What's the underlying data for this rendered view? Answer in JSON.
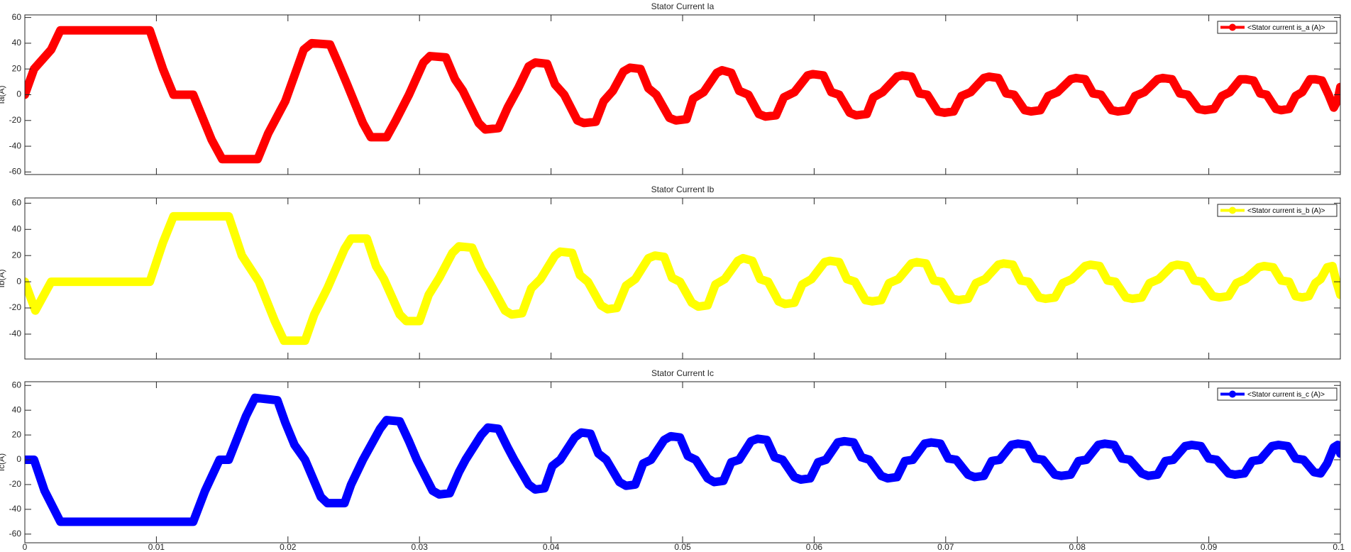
{
  "chart_data": [
    {
      "type": "line",
      "title": "Stator Current Ia",
      "ylabel": "Ia(A)",
      "legend": "northeast",
      "xlim": [
        0,
        0.1
      ],
      "xticks": [
        0,
        0.01,
        0.02,
        0.03,
        0.04,
        0.05,
        0.06,
        0.07,
        0.08,
        0.09,
        0.1
      ],
      "ylim": [
        -62,
        62
      ],
      "yticks": [
        -60,
        -40,
        -20,
        0,
        20,
        40,
        60
      ],
      "x": [
        0,
        0.0007,
        0.002,
        0.0027,
        0.0095,
        0.0105,
        0.0113,
        0.0128,
        0.0142,
        0.015,
        0.0177,
        0.0185,
        0.0198,
        0.0212,
        0.0218,
        0.0232,
        0.0238,
        0.0245,
        0.0257,
        0.0263,
        0.0275,
        0.0282,
        0.0292,
        0.0303,
        0.0308,
        0.032,
        0.0327,
        0.0333,
        0.0345,
        0.035,
        0.036,
        0.0367,
        0.0375,
        0.0383,
        0.0388,
        0.0397,
        0.0403,
        0.041,
        0.042,
        0.0425,
        0.0434,
        0.044,
        0.0447,
        0.0455,
        0.046,
        0.0468,
        0.0474,
        0.048,
        0.049,
        0.0495,
        0.0503,
        0.0508,
        0.0516,
        0.0526,
        0.053,
        0.0537,
        0.0543,
        0.055,
        0.0558,
        0.0563,
        0.0571,
        0.0577,
        0.0585,
        0.0595,
        0.0599,
        0.0607,
        0.0613,
        0.0619,
        0.0627,
        0.0632,
        0.064,
        0.0645,
        0.0652,
        0.0663,
        0.0667,
        0.0674,
        0.068,
        0.0686,
        0.0694,
        0.0699,
        0.0706,
        0.0712,
        0.0719,
        0.0729,
        0.0733,
        0.074,
        0.0746,
        0.0752,
        0.076,
        0.0765,
        0.0772,
        0.0778,
        0.0785,
        0.0795,
        0.0799,
        0.0806,
        0.0812,
        0.0818,
        0.0826,
        0.0831,
        0.0838,
        0.0844,
        0.0851,
        0.0861,
        0.0865,
        0.0872,
        0.0878,
        0.0884,
        0.0892,
        0.0897,
        0.0904,
        0.091,
        0.0916,
        0.0924,
        0.0928,
        0.0934,
        0.0939,
        0.0944,
        0.0951,
        0.0955,
        0.0961,
        0.0966,
        0.0971,
        0.0977,
        0.0981,
        0.0986,
        0.0991,
        0.0995,
        0.0998,
        0.1
      ],
      "series": [
        {
          "name": "<Stator current is_a (A)>",
          "color": "#ff0000",
          "values": [
            0,
            20,
            35,
            50,
            50,
            20,
            0,
            0,
            -35,
            -50,
            -50,
            -30,
            -5,
            35,
            40,
            39,
            25,
            8,
            -22,
            -33,
            -33,
            -20,
            0,
            25,
            30,
            29,
            12,
            3,
            -22,
            -27,
            -26,
            -10,
            5,
            22,
            25,
            24,
            8,
            0,
            -20,
            -22,
            -21,
            -5,
            3,
            18,
            21,
            20,
            5,
            0,
            -18,
            -20,
            -19,
            -3,
            2,
            17,
            19,
            17,
            3,
            0,
            -15,
            -17,
            -16,
            -2,
            2,
            15,
            16,
            15,
            2,
            0,
            -14,
            -16,
            -15,
            -2,
            2,
            14,
            15,
            14,
            1,
            0,
            -13,
            -14,
            -13,
            -1,
            2,
            13,
            14,
            13,
            1,
            0,
            -12,
            -13,
            -12,
            -1,
            2,
            12,
            13,
            12,
            1,
            0,
            -12,
            -13,
            -12,
            -1,
            2,
            12,
            13,
            12,
            1,
            0,
            -11,
            -12,
            -11,
            -1,
            2,
            12,
            12,
            11,
            1,
            0,
            -11,
            -12,
            -11,
            -1,
            2,
            12,
            12,
            11,
            0,
            -10,
            -4,
            6
          ]
        }
      ]
    },
    {
      "type": "line",
      "title": "Stator Current Ib",
      "ylabel": "Ib(A)",
      "legend": "northeast",
      "xlim": [
        0,
        0.1
      ],
      "xticks": [
        0,
        0.01,
        0.02,
        0.03,
        0.04,
        0.05,
        0.06,
        0.07,
        0.08,
        0.09,
        0.1
      ],
      "ylim": [
        -59,
        64
      ],
      "yticks": [
        -40,
        -20,
        0,
        20,
        40,
        60
      ],
      "x": [
        0,
        0.0008,
        0.002,
        0.0095,
        0.0105,
        0.0113,
        0.0155,
        0.0165,
        0.0178,
        0.019,
        0.0197,
        0.0213,
        0.022,
        0.023,
        0.0243,
        0.0248,
        0.026,
        0.0267,
        0.0273,
        0.0285,
        0.029,
        0.03,
        0.0307,
        0.0315,
        0.0325,
        0.033,
        0.034,
        0.0347,
        0.0353,
        0.0365,
        0.037,
        0.0378,
        0.0385,
        0.0392,
        0.0403,
        0.0407,
        0.0416,
        0.0422,
        0.0428,
        0.0438,
        0.0443,
        0.045,
        0.0457,
        0.0464,
        0.0474,
        0.0479,
        0.0486,
        0.0492,
        0.0498,
        0.0507,
        0.0512,
        0.0519,
        0.0525,
        0.0532,
        0.0542,
        0.0546,
        0.0553,
        0.0559,
        0.0565,
        0.0573,
        0.0578,
        0.0585,
        0.0591,
        0.0598,
        0.0608,
        0.0612,
        0.0619,
        0.0625,
        0.0631,
        0.0639,
        0.0644,
        0.0651,
        0.0657,
        0.0664,
        0.0674,
        0.0678,
        0.0685,
        0.0691,
        0.0697,
        0.0705,
        0.071,
        0.0717,
        0.0723,
        0.073,
        0.074,
        0.0744,
        0.0751,
        0.0757,
        0.0763,
        0.0771,
        0.0776,
        0.0783,
        0.0789,
        0.0796,
        0.0806,
        0.081,
        0.0817,
        0.0823,
        0.0829,
        0.0837,
        0.0842,
        0.0849,
        0.0855,
        0.0862,
        0.0872,
        0.0876,
        0.0883,
        0.0889,
        0.0895,
        0.0903,
        0.0908,
        0.0915,
        0.0921,
        0.0928,
        0.0938,
        0.0942,
        0.0949,
        0.0955,
        0.0961,
        0.0966,
        0.0971,
        0.0976,
        0.0981,
        0.0985,
        0.099,
        0.0994,
        0.0997,
        0.1
      ],
      "series": [
        {
          "name": "<Stator current is_b (A)>",
          "color": "#ffff00",
          "values": [
            0,
            -22,
            0,
            0,
            30,
            50,
            50,
            20,
            0,
            -30,
            -45,
            -45,
            -25,
            -5,
            25,
            33,
            33,
            12,
            2,
            -25,
            -30,
            -30,
            -10,
            3,
            22,
            27,
            26,
            10,
            0,
            -22,
            -25,
            -24,
            -5,
            2,
            20,
            23,
            22,
            5,
            0,
            -18,
            -21,
            -20,
            -3,
            2,
            18,
            20,
            19,
            3,
            0,
            -16,
            -19,
            -18,
            -2,
            2,
            16,
            18,
            16,
            2,
            0,
            -15,
            -17,
            -16,
            -2,
            2,
            15,
            16,
            15,
            2,
            0,
            -14,
            -15,
            -14,
            -1,
            2,
            14,
            15,
            14,
            1,
            0,
            -13,
            -14,
            -13,
            -1,
            2,
            13,
            14,
            13,
            1,
            0,
            -12,
            -13,
            -12,
            -1,
            2,
            12,
            13,
            12,
            1,
            0,
            -12,
            -13,
            -12,
            -1,
            2,
            12,
            13,
            12,
            1,
            0,
            -11,
            -12,
            -11,
            -1,
            2,
            11,
            12,
            11,
            1,
            0,
            -11,
            -12,
            -11,
            -1,
            2,
            11,
            12,
            0,
            -10
          ]
        }
      ]
    },
    {
      "type": "line",
      "title": "Stator Current Ic",
      "ylabel": "Ic(A)",
      "legend": "northeast",
      "xlim": [
        0,
        0.1
      ],
      "xticks": [
        0,
        0.01,
        0.02,
        0.03,
        0.04,
        0.05,
        0.06,
        0.07,
        0.08,
        0.09,
        0.1
      ],
      "ylim": [
        -67,
        63
      ],
      "yticks": [
        -60,
        -40,
        -20,
        0,
        20,
        40,
        60
      ],
      "x": [
        0,
        0.0007,
        0.0015,
        0.0027,
        0.0128,
        0.0137,
        0.0148,
        0.0155,
        0.0168,
        0.0175,
        0.0192,
        0.0198,
        0.0205,
        0.0213,
        0.0225,
        0.023,
        0.0243,
        0.0248,
        0.0257,
        0.027,
        0.0275,
        0.0285,
        0.0292,
        0.0298,
        0.031,
        0.0315,
        0.0323,
        0.033,
        0.0335,
        0.0347,
        0.0352,
        0.036,
        0.0367,
        0.0372,
        0.0383,
        0.0388,
        0.0395,
        0.0401,
        0.0407,
        0.0418,
        0.0423,
        0.043,
        0.0436,
        0.0442,
        0.0452,
        0.0457,
        0.0464,
        0.047,
        0.0476,
        0.0486,
        0.0491,
        0.0498,
        0.0504,
        0.051,
        0.0519,
        0.0524,
        0.0531,
        0.0537,
        0.0543,
        0.0552,
        0.0557,
        0.0564,
        0.057,
        0.0576,
        0.0585,
        0.059,
        0.0597,
        0.0603,
        0.0609,
        0.0618,
        0.0623,
        0.063,
        0.0636,
        0.0642,
        0.0651,
        0.0656,
        0.0663,
        0.0669,
        0.0675,
        0.0684,
        0.0689,
        0.0696,
        0.0702,
        0.0708,
        0.0717,
        0.0722,
        0.0729,
        0.0735,
        0.0741,
        0.075,
        0.0755,
        0.0762,
        0.0768,
        0.0774,
        0.0783,
        0.0788,
        0.0795,
        0.0801,
        0.0807,
        0.0816,
        0.0821,
        0.0828,
        0.0834,
        0.084,
        0.0849,
        0.0854,
        0.0861,
        0.0867,
        0.0873,
        0.0882,
        0.0887,
        0.0894,
        0.09,
        0.0906,
        0.0915,
        0.092,
        0.0927,
        0.0933,
        0.0939,
        0.0948,
        0.0953,
        0.096,
        0.0966,
        0.0972,
        0.098,
        0.0985,
        0.099,
        0.0995,
        0.0998,
        0.1
      ],
      "series": [
        {
          "name": "<Stator current is_c (A)>",
          "color": "#0000ff",
          "values": [
            0,
            0,
            -25,
            -50,
            -50,
            -25,
            0,
            0,
            35,
            50,
            48,
            30,
            12,
            0,
            -30,
            -35,
            -35,
            -20,
            0,
            25,
            32,
            31,
            15,
            0,
            -25,
            -28,
            -27,
            -10,
            0,
            20,
            26,
            25,
            10,
            0,
            -20,
            -24,
            -23,
            -5,
            0,
            18,
            22,
            21,
            5,
            0,
            -18,
            -21,
            -20,
            -3,
            0,
            16,
            19,
            18,
            3,
            0,
            -15,
            -18,
            -17,
            -2,
            0,
            15,
            17,
            16,
            2,
            0,
            -14,
            -16,
            -15,
            -2,
            0,
            14,
            15,
            14,
            2,
            0,
            -13,
            -15,
            -14,
            -1,
            0,
            13,
            14,
            13,
            1,
            0,
            -12,
            -14,
            -13,
            -1,
            0,
            12,
            13,
            12,
            1,
            0,
            -12,
            -13,
            -12,
            -1,
            0,
            12,
            13,
            12,
            1,
            0,
            -11,
            -13,
            -12,
            -1,
            0,
            11,
            12,
            11,
            1,
            0,
            -11,
            -12,
            -11,
            -1,
            0,
            11,
            12,
            11,
            1,
            0,
            -10,
            -11,
            -3,
            10,
            12,
            5
          ]
        }
      ]
    }
  ]
}
